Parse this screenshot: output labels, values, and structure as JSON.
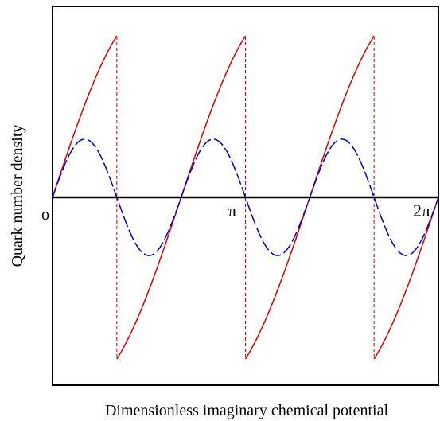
{
  "chart_data": {
    "type": "line",
    "title": "",
    "xlabel": "Dimensionless imaginary chemical potential",
    "ylabel": "Quark number density",
    "xlim": [
      0,
      6.283185307
    ],
    "ylim": [
      -1.25,
      1.25
    ],
    "x_tick_labels": [
      {
        "value": 0,
        "label": "o"
      },
      {
        "value": 3.141592654,
        "label": "π"
      },
      {
        "value": 6.283185307,
        "label": "2π"
      }
    ],
    "grid": false,
    "legend": "none",
    "colors": {
      "sawtooth": "#dd0000",
      "discontinuity": "#dd0000",
      "sine": "#0000cc",
      "axis": "#000000"
    },
    "series": [
      {
        "style": "solid red sawtooth with 2π/3 periodicity, smoothly curved ramps",
        "period": 2.094395102,
        "discontinuities": [
          1.047197551,
          3.141592654,
          5.235987756
        ],
        "jump_from": 1.0,
        "jump_to": -1.0
      },
      {
        "style": "dashed blue sinusoid with 2π/3 periodicity",
        "period": 2.094395102,
        "amplitude": 0.36
      }
    ]
  }
}
